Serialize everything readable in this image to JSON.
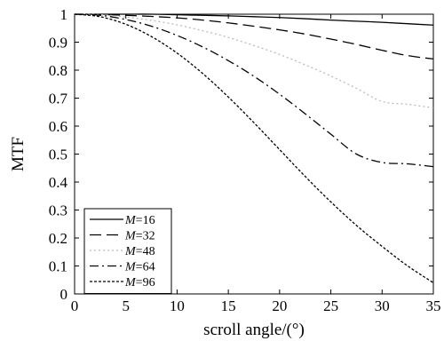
{
  "chart_data": {
    "type": "line",
    "title": "",
    "xlabel": "scroll angle/(°)",
    "ylabel": "MTF",
    "xlim": [
      0,
      35
    ],
    "ylim": [
      0,
      1
    ],
    "xticks": [
      "0",
      "5",
      "10",
      "15",
      "20",
      "25",
      "30",
      "35"
    ],
    "yticks": [
      "0",
      "0.1",
      "0.2",
      "0.3",
      "0.4",
      "0.5",
      "0.6",
      "0.7",
      "0.8",
      "0.9",
      "1"
    ],
    "grid": false,
    "legend_position": "bottom-left",
    "legend_variable": "M",
    "x": [
      0,
      2.5,
      5,
      7.5,
      10,
      12.5,
      15,
      17.5,
      20,
      22.5,
      25,
      27.5,
      30,
      32.5,
      35
    ],
    "series": [
      {
        "name": "=16",
        "color": "#000000",
        "dash": "solid",
        "values": [
          1.0,
          1.0,
          1.0,
          1.0,
          0.998,
          0.996,
          0.994,
          0.991,
          0.988,
          0.984,
          0.979,
          0.975,
          0.971,
          0.966,
          0.961
        ]
      },
      {
        "name": "=32",
        "color": "#000000",
        "dash": "longdash",
        "values": [
          1.0,
          0.999,
          0.996,
          0.992,
          0.987,
          0.979,
          0.969,
          0.957,
          0.944,
          0.929,
          0.911,
          0.892,
          0.871,
          0.852,
          0.84
        ]
      },
      {
        "name": "=48",
        "color": "#bbbbbb",
        "dash": "dot",
        "values": [
          1.0,
          0.998,
          0.99,
          0.978,
          0.962,
          0.941,
          0.917,
          0.888,
          0.856,
          0.819,
          0.779,
          0.735,
          0.688,
          0.678,
          0.665
        ]
      },
      {
        "name": "=64",
        "color": "#000000",
        "dash": "dashdot",
        "values": [
          1.0,
          0.996,
          0.981,
          0.957,
          0.924,
          0.883,
          0.834,
          0.778,
          0.714,
          0.644,
          0.571,
          0.5,
          0.47,
          0.465,
          0.455
        ]
      },
      {
        "name": "=96",
        "color": "#000000",
        "dash": "shortdot",
        "values": [
          1.0,
          0.991,
          0.964,
          0.92,
          0.861,
          0.788,
          0.704,
          0.612,
          0.516,
          0.42,
          0.329,
          0.245,
          0.17,
          0.1,
          0.04
        ]
      }
    ]
  }
}
